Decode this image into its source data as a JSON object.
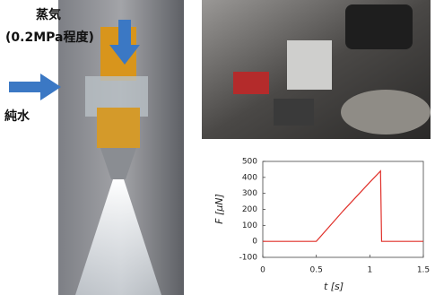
{
  "labels": {
    "steam": "蒸気",
    "pressure": "(0.2MPa程度)",
    "water": "純水"
  },
  "chart_data": {
    "type": "line",
    "x": [
      0,
      0.5,
      0.75,
      1.0,
      1.1,
      1.11,
      1.5
    ],
    "values": [
      0,
      0,
      190,
      370,
      440,
      0,
      0
    ],
    "color": "#e0302a",
    "xlabel": "t [s]",
    "ylabel": "F [μN]",
    "xlim": [
      0,
      1.5
    ],
    "xticks": [
      0,
      0.5,
      1,
      1.5
    ],
    "ylim": [
      -100,
      500
    ],
    "yticks": [
      -100,
      0,
      100,
      200,
      300,
      400,
      500
    ]
  }
}
